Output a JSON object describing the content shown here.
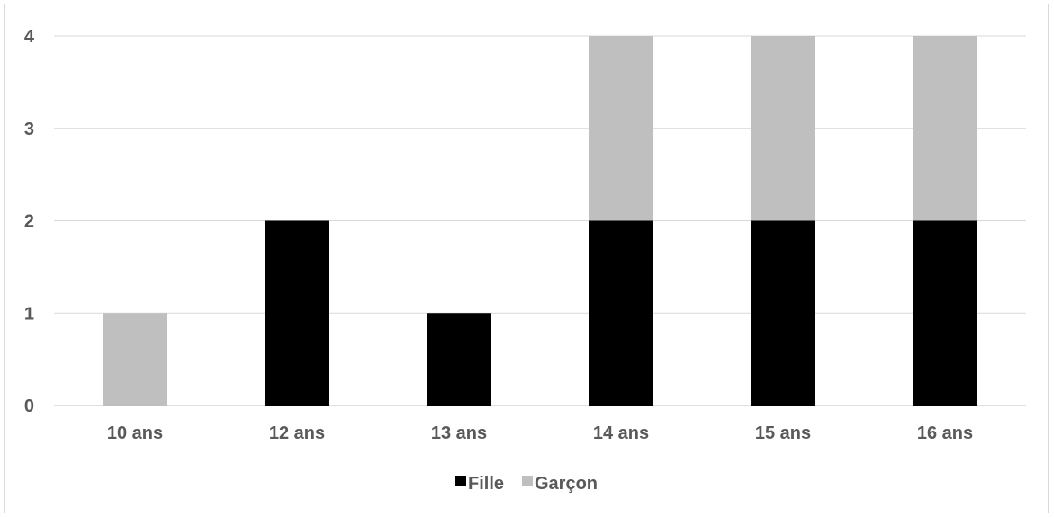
{
  "chart_data": {
    "type": "bar",
    "stacked": true,
    "categories": [
      "10 ans",
      "12 ans",
      "13 ans",
      "14 ans",
      "15 ans",
      "16 ans"
    ],
    "series": [
      {
        "name": "Fille",
        "color": "#000000",
        "values": [
          0,
          2,
          1,
          2,
          2,
          2
        ]
      },
      {
        "name": "Garçon",
        "color": "#bfbfbf",
        "values": [
          1,
          0,
          0,
          2,
          2,
          2
        ]
      }
    ],
    "yticks": [
      "0",
      "1",
      "2",
      "3",
      "4"
    ],
    "ylim": [
      0,
      4
    ],
    "grid": true,
    "legend_position": "bottom",
    "title": "",
    "xlabel": "",
    "ylabel": ""
  }
}
